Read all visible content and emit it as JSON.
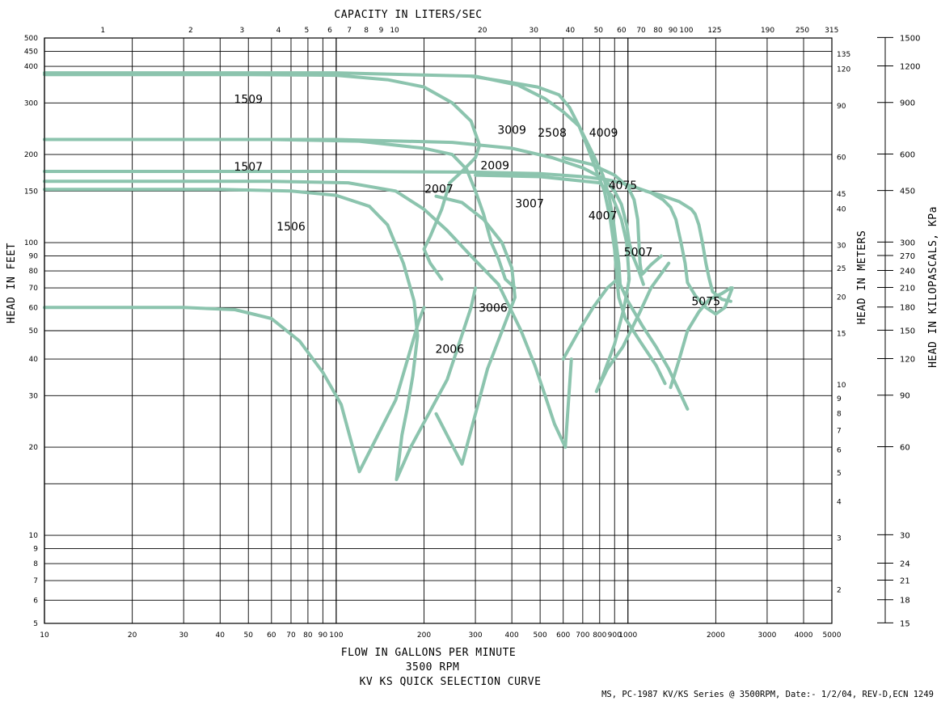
{
  "chart_data": {
    "type": "line",
    "title": "KV KS QUICK SELECTION CURVE",
    "subtitle": "3500 RPM",
    "footnote": "MS, PC-1987 KV/KS Series @ 3500RPM, Date:- 1/2/04, REV-D,ECN 1249",
    "xlabel": "FLOW IN GALLONS PER MINUTE",
    "x2label": "CAPACITY IN LITERS/SEC",
    "ylabel": "HEAD IN FEET",
    "y2label": "HEAD IN METERS",
    "y3label": "HEAD IN KILOPASCALS, KPa",
    "x_scale": "log",
    "y_scale": "log",
    "xlim": [
      10,
      5000
    ],
    "ylim": [
      5,
      500
    ],
    "grid": true,
    "line_color": "#8cc4ae",
    "x_ticks": [
      "10",
      "20",
      "30",
      "40",
      "50",
      "60",
      "70",
      "80",
      "90",
      "100",
      "200",
      "300",
      "400",
      "500",
      "600",
      "700",
      "800",
      "900",
      "1000",
      "2000",
      "3000",
      "4000",
      "5000"
    ],
    "x2_ticks": [
      "1",
      "2",
      "3",
      "4",
      "5",
      "6",
      "7",
      "8",
      "9",
      "10",
      "20",
      "30",
      "40",
      "50",
      "60",
      "70",
      "80",
      "90",
      "100",
      "125",
      "190",
      "250",
      "315"
    ],
    "y_ticks": [
      "5",
      "6",
      "7",
      "8",
      "9",
      "10",
      "20",
      "30",
      "40",
      "50",
      "60",
      "70",
      "80",
      "90",
      "100",
      "150",
      "200",
      "300",
      "400",
      "450",
      "500"
    ],
    "y2_ticks": [
      "2",
      "3",
      "4",
      "5",
      "6",
      "7",
      "8",
      "9",
      "10",
      "15",
      "20",
      "25",
      "30",
      "40",
      "45",
      "60",
      "90",
      "120",
      "135"
    ],
    "y3_ticks": [
      "15",
      "18",
      "21",
      "24",
      "30",
      "60",
      "90",
      "120",
      "150",
      "180",
      "210",
      "240",
      "270",
      "300",
      "450",
      "600",
      "900",
      "1200",
      "1500"
    ],
    "series": [
      {
        "name": "1506",
        "label_at": [
          70,
          110
        ],
        "points": [
          [
            10,
            60
          ],
          [
            30,
            60
          ],
          [
            45,
            59
          ],
          [
            60,
            55
          ],
          [
            75,
            46
          ],
          [
            90,
            36
          ],
          [
            104,
            28
          ],
          [
            120,
            16.5
          ],
          [
            160,
            29
          ],
          [
            192,
            54
          ],
          [
            200,
            60
          ]
        ]
      },
      {
        "name": "2006",
        "label_at": [
          245,
          42
        ],
        "points": [
          [
            220,
            26
          ],
          [
            270,
            17.5
          ],
          [
            330,
            37
          ],
          [
            410,
            65
          ],
          [
            400,
            82
          ],
          [
            370,
            100
          ],
          [
            320,
            120
          ],
          [
            270,
            137
          ],
          [
            220,
            144
          ]
        ]
      },
      {
        "name": "1507",
        "label_at": [
          50,
          176
        ],
        "points": [
          [
            10,
            152
          ],
          [
            40,
            152
          ],
          [
            70,
            150
          ],
          [
            100,
            145
          ],
          [
            130,
            133
          ],
          [
            150,
            115
          ],
          [
            170,
            85
          ],
          [
            185,
            63
          ],
          [
            190,
            48
          ],
          [
            183,
            35
          ],
          [
            175,
            27
          ],
          [
            168,
            22
          ],
          [
            161,
            15.5
          ],
          [
            180,
            20
          ],
          [
            240,
            34
          ],
          [
            290,
            60
          ],
          [
            300,
            70
          ]
        ]
      },
      {
        "name": "3006",
        "label_at": [
          345,
          58
        ],
        "points": [
          [
            600,
            40
          ],
          [
            680,
            50
          ],
          [
            760,
            60
          ],
          [
            850,
            70
          ],
          [
            920,
            75
          ]
        ]
      },
      {
        "name": "1509",
        "label_at": [
          50,
          300
        ],
        "points": [
          [
            10,
            375
          ],
          [
            50,
            375
          ],
          [
            100,
            373
          ],
          [
            150,
            360
          ],
          [
            200,
            340
          ],
          [
            250,
            300
          ],
          [
            290,
            260
          ],
          [
            310,
            215
          ],
          [
            300,
            195
          ],
          [
            270,
            175
          ],
          [
            245,
            160
          ],
          [
            230,
            130
          ],
          [
            210,
            105
          ],
          [
            200,
            95
          ],
          [
            210,
            85
          ],
          [
            230,
            75
          ]
        ]
      },
      {
        "name": "2007",
        "label_at": [
          225,
          148
        ],
        "points": [
          [
            10,
            162
          ],
          [
            60,
            162
          ],
          [
            110,
            160
          ],
          [
            160,
            150
          ],
          [
            200,
            130
          ],
          [
            240,
            110
          ],
          [
            290,
            90
          ],
          [
            360,
            72
          ],
          [
            430,
            50
          ],
          [
            480,
            38
          ],
          [
            520,
            30
          ],
          [
            560,
            24
          ],
          [
            610,
            20
          ],
          [
            640,
            40
          ]
        ]
      },
      {
        "name": "3009",
        "label_at": [
          400,
          235
        ],
        "points": [
          [
            10,
            225
          ],
          [
            60,
            225
          ],
          [
            120,
            222
          ],
          [
            200,
            210
          ],
          [
            250,
            200
          ],
          [
            280,
            178
          ],
          [
            300,
            150
          ],
          [
            320,
            125
          ],
          [
            340,
            100
          ],
          [
            360,
            88
          ],
          [
            380,
            75
          ],
          [
            410,
            70
          ]
        ]
      },
      {
        "name": "2009",
        "label_at": [
          350,
          178
        ],
        "points": [
          [
            300,
            170
          ],
          [
            500,
            168
          ],
          [
            800,
            160
          ],
          [
            880,
            145
          ],
          [
            950,
            120
          ],
          [
            990,
            100
          ],
          [
            1010,
            75
          ],
          [
            970,
            60
          ],
          [
            900,
            45
          ],
          [
            820,
            35
          ],
          [
            780,
            31
          ],
          [
            850,
            37
          ],
          [
            960,
            44
          ],
          [
            1100,
            58
          ],
          [
            1200,
            70
          ],
          [
            1380,
            85
          ]
        ]
      },
      {
        "name": "3007",
        "label_at": [
          460,
          132
        ],
        "points": [
          [
            290,
            370
          ],
          [
            380,
            355
          ],
          [
            490,
            340
          ],
          [
            580,
            320
          ],
          [
            630,
            290
          ],
          [
            680,
            250
          ],
          [
            730,
            210
          ],
          [
            790,
            170
          ],
          [
            830,
            150
          ],
          [
            870,
            120
          ],
          [
            900,
            95
          ],
          [
            920,
            72
          ],
          [
            930,
            65
          ],
          [
            980,
            55
          ],
          [
            1100,
            46
          ],
          [
            1250,
            38
          ],
          [
            1340,
            33
          ]
        ]
      },
      {
        "name": "2508",
        "label_at": [
          550,
          230
        ],
        "points": [
          [
            10,
            380
          ],
          [
            100,
            380
          ],
          [
            300,
            370
          ],
          [
            420,
            345
          ],
          [
            520,
            310
          ],
          [
            600,
            280
          ],
          [
            680,
            250
          ],
          [
            760,
            200
          ],
          [
            820,
            170
          ],
          [
            860,
            145
          ],
          [
            890,
            120
          ],
          [
            910,
            100
          ],
          [
            930,
            85
          ],
          [
            940,
            72
          ],
          [
            1000,
            63
          ],
          [
            1120,
            52
          ],
          [
            1250,
            44
          ],
          [
            1380,
            37
          ],
          [
            1500,
            31
          ],
          [
            1600,
            27
          ]
        ]
      },
      {
        "name": "4009",
        "label_at": [
          825,
          230
        ],
        "points": [
          [
            10,
            225
          ],
          [
            100,
            225
          ],
          [
            250,
            220
          ],
          [
            400,
            210
          ],
          [
            550,
            195
          ],
          [
            700,
            180
          ],
          [
            830,
            165
          ],
          [
            900,
            150
          ],
          [
            950,
            135
          ],
          [
            990,
            115
          ],
          [
            1010,
            100
          ],
          [
            1040,
            90
          ],
          [
            1090,
            80
          ],
          [
            1130,
            72
          ]
        ]
      },
      {
        "name": "4007",
        "label_at": [
          820,
          120
        ],
        "points": [
          [
            10,
            175
          ],
          [
            100,
            175
          ],
          [
            300,
            174
          ],
          [
            500,
            172
          ],
          [
            700,
            168
          ],
          [
            850,
            164
          ],
          [
            950,
            160
          ],
          [
            1050,
            155
          ],
          [
            1200,
            148
          ],
          [
            1320,
            140
          ],
          [
            1400,
            132
          ],
          [
            1460,
            120
          ],
          [
            1520,
            100
          ],
          [
            1570,
            85
          ],
          [
            1600,
            73
          ],
          [
            1700,
            66
          ],
          [
            1850,
            60
          ],
          [
            2000,
            57
          ],
          [
            2150,
            60
          ],
          [
            2280,
            70
          ]
        ]
      },
      {
        "name": "4075",
        "label_at": [
          960,
          152
        ],
        "points": [
          [
            600,
            195
          ],
          [
            750,
            185
          ],
          [
            900,
            170
          ],
          [
            1000,
            155
          ],
          [
            1050,
            140
          ],
          [
            1080,
            120
          ],
          [
            1090,
            100
          ],
          [
            1100,
            85
          ],
          [
            1110,
            80
          ],
          [
            1120,
            78
          ],
          [
            1200,
            84
          ],
          [
            1300,
            90
          ]
        ]
      },
      {
        "name": "5007",
        "label_at": [
          1085,
          90
        ],
        "points": [
          [
            1150,
            150
          ],
          [
            1300,
            145
          ],
          [
            1500,
            138
          ],
          [
            1650,
            130
          ],
          [
            1700,
            125
          ],
          [
            1750,
            115
          ],
          [
            1800,
            100
          ],
          [
            1850,
            85
          ],
          [
            1900,
            75
          ],
          [
            1950,
            68
          ],
          [
            2100,
            64
          ],
          [
            2250,
            63
          ]
        ]
      },
      {
        "name": "5075",
        "label_at": [
          1850,
          61
        ],
        "points": [
          [
            1400,
            32
          ],
          [
            1500,
            40
          ],
          [
            1600,
            50
          ],
          [
            1750,
            58
          ],
          [
            1900,
            64
          ],
          [
            2100,
            67
          ],
          [
            2250,
            70
          ]
        ]
      }
    ]
  }
}
